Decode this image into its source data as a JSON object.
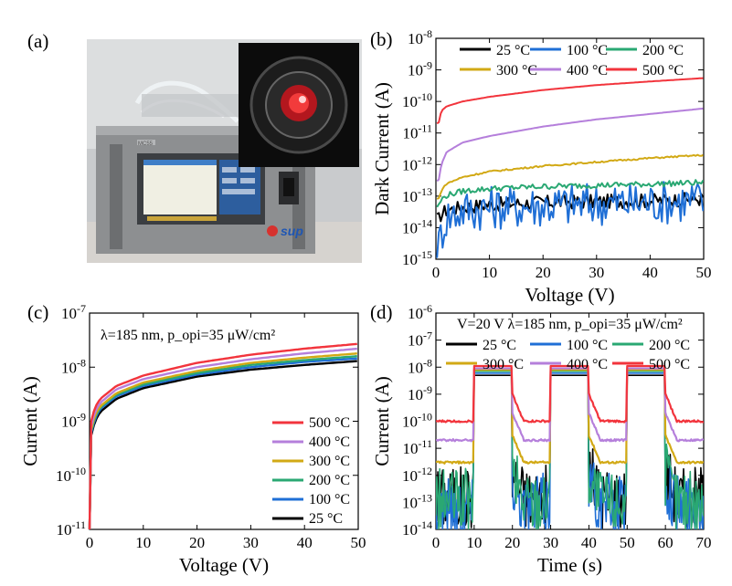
{
  "panel_labels": [
    "(a)",
    "(b)",
    "(c)",
    "(d)"
  ],
  "photo": {
    "instrument_logo": "sup",
    "instrument_badge": "MC55"
  },
  "colors": {
    "25": "#000000",
    "100": "#1f6fd6",
    "200": "#2aa873",
    "300": "#d2a915",
    "400": "#b57fdb",
    "500": "#f2343c"
  },
  "chart_data": [
    {
      "panel": "(b)",
      "type": "line",
      "xlabel": "Voltage (V)",
      "ylabel": "Dark Current (A)",
      "xlim": [
        0,
        50
      ],
      "ylim": [
        1e-15,
        1e-08
      ],
      "yscale": "log",
      "xticks": [
        "0",
        "10",
        "20",
        "30",
        "40",
        "50"
      ],
      "yticks": [
        "10^-15",
        "10^-14",
        "10^-13",
        "10^-12",
        "10^-11",
        "10^-10",
        "10^-9",
        "10^-8"
      ],
      "legend_position": "top",
      "x": [
        0.5,
        1,
        2,
        5,
        10,
        20,
        30,
        40,
        50
      ],
      "series": [
        {
          "name": "25 °C",
          "values": [
            2e-14,
            3e-14,
            4e-14,
            5e-14,
            6e-14,
            7e-14,
            7.5e-14,
            8e-14,
            9e-14
          ]
        },
        {
          "name": "100 °C",
          "values": [
            3e-15,
            1e-14,
            3e-14,
            5e-14,
            6e-14,
            7e-14,
            8e-14,
            9e-14,
            1e-13
          ]
        },
        {
          "name": "200 °C",
          "values": [
            5e-14,
            8e-14,
            1.1e-13,
            1.5e-13,
            1.8e-13,
            2.1e-13,
            2.3e-13,
            2.5e-13,
            2.8e-13
          ]
        },
        {
          "name": "300 °C",
          "values": [
            8e-14,
            1.5e-13,
            2.5e-13,
            4e-13,
            6e-13,
            9e-13,
            1.2e-12,
            1.6e-12,
            2e-12
          ]
        },
        {
          "name": "400 °C",
          "values": [
            3e-13,
            1e-12,
            2.5e-12,
            5e-12,
            8e-12,
            1.6e-11,
            2.7e-11,
            4e-11,
            6e-11
          ]
        },
        {
          "name": "500 °C",
          "values": [
            2e-11,
            5e-11,
            7e-11,
            1e-10,
            1.4e-10,
            2.3e-10,
            3.3e-10,
            4.3e-10,
            5.5e-10
          ]
        }
      ]
    },
    {
      "panel": "(c)",
      "type": "line",
      "xlabel": "Voltage (V)",
      "ylabel": "Current (A)",
      "xlim": [
        0,
        50
      ],
      "ylim": [
        1e-11,
        1e-07
      ],
      "yscale": "log",
      "xticks": [
        "0",
        "10",
        "20",
        "30",
        "40",
        "50"
      ],
      "yticks": [
        "10^-11",
        "10^-10",
        "10^-9",
        "10^-8",
        "10^-7"
      ],
      "annotation": "λ=185 nm, p_opi=35 μW/cm²",
      "legend_position": "right",
      "x": [
        0.3,
        1,
        2,
        5,
        10,
        20,
        30,
        40,
        50
      ],
      "series": [
        {
          "name": "500 °C",
          "values": [
            1e-09,
            1.8e-09,
            2.6e-09,
            4.5e-09,
            7e-09,
            1.2e-08,
            1.7e-08,
            2.2e-08,
            2.7e-08
          ]
        },
        {
          "name": "400 °C",
          "values": [
            8e-10,
            1.5e-09,
            2.2e-09,
            3.9e-09,
            6e-09,
            1e-08,
            1.4e-08,
            1.8e-08,
            2.2e-08
          ]
        },
        {
          "name": "300 °C",
          "values": [
            7e-10,
            1.3e-09,
            1.9e-09,
            3.3e-09,
            5.2e-09,
            8.5e-09,
            1.2e-08,
            1.5e-08,
            1.8e-08
          ]
        },
        {
          "name": "200 °C",
          "values": [
            6.5e-10,
            1.2e-09,
            1.8e-09,
            3.1e-09,
            4.8e-09,
            7.8e-09,
            1.1e-08,
            1.35e-08,
            1.6e-08
          ]
        },
        {
          "name": "100 °C",
          "values": [
            6e-10,
            1.1e-09,
            1.7e-09,
            2.9e-09,
            4.5e-09,
            7.3e-09,
            1e-08,
            1.25e-08,
            1.45e-08
          ]
        },
        {
          "name": "25 °C",
          "values": [
            5.5e-10,
            1e-09,
            1.5e-09,
            2.6e-09,
            4.1e-09,
            6.7e-09,
            9e-09,
            1.1e-08,
            1.3e-08
          ]
        }
      ]
    },
    {
      "panel": "(d)",
      "type": "line",
      "xlabel": "Time (s)",
      "ylabel": "Current (A)",
      "xlim": [
        0,
        70
      ],
      "ylim": [
        1e-14,
        1e-06
      ],
      "yscale": "log",
      "xticks": [
        "0",
        "10",
        "20",
        "30",
        "40",
        "50",
        "60",
        "70"
      ],
      "yticks": [
        "10^-14",
        "10^-13",
        "10^-12",
        "10^-11",
        "10^-10",
        "10^-9",
        "10^-8",
        "10^-7",
        "10^-6"
      ],
      "annotation": "V=20 V  λ=185 nm, p_opi=35 μW/cm²",
      "legend_position": "top",
      "light_on_intervals": [
        [
          10,
          20
        ],
        [
          30,
          40
        ],
        [
          50,
          60
        ]
      ],
      "series": [
        {
          "name": "25 °C",
          "on": 5e-09,
          "off": 2e-13
        },
        {
          "name": "100 °C",
          "on": 6e-09,
          "off": 1e-13
        },
        {
          "name": "200 °C",
          "on": 7e-09,
          "off": 1.5e-13
        },
        {
          "name": "300 °C",
          "on": 8e-09,
          "off": 3e-12
        },
        {
          "name": "400 °C",
          "on": 9e-09,
          "off": 2e-11
        },
        {
          "name": "500 °C",
          "on": 1.1e-08,
          "off": 1e-10
        }
      ]
    }
  ]
}
